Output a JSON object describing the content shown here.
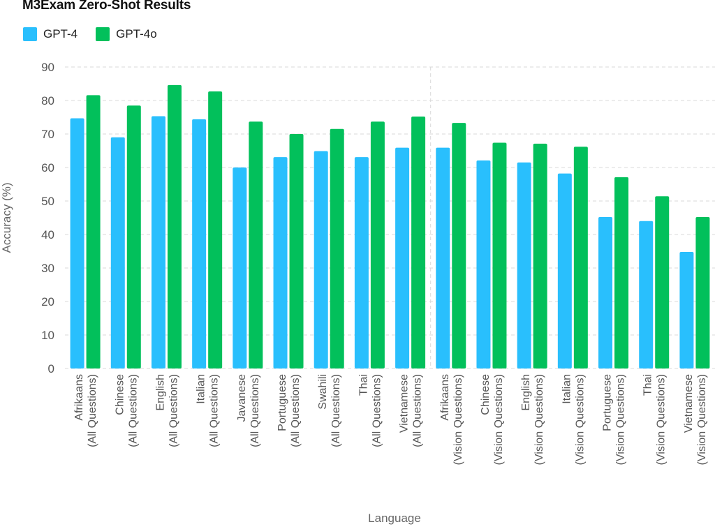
{
  "chart_data": {
    "type": "bar",
    "title": "M3Exam Zero-Shot Results",
    "xlabel": "Language",
    "ylabel": "Accuracy (%)",
    "ylim": [
      0,
      90
    ],
    "yticks": [
      0,
      10,
      20,
      30,
      40,
      50,
      60,
      70,
      80,
      90
    ],
    "grid": true,
    "legend_position": "top-left",
    "categories": [
      [
        "Afrikaans",
        "(All Questions)"
      ],
      [
        "Chinese",
        "(All Questions)"
      ],
      [
        "English",
        "(All Questions)"
      ],
      [
        "Italian",
        "(All Questions)"
      ],
      [
        "Javanese",
        "(All Questions)"
      ],
      [
        "Portuguese",
        "(All Questions)"
      ],
      [
        "Swahili",
        "(All Questions)"
      ],
      [
        "Thai",
        "(All Questions)"
      ],
      [
        "Vietnamese",
        "(All Questions)"
      ],
      [
        "Afrikaans",
        "(Vision Questions)"
      ],
      [
        "Chinese",
        "(Vision Questions)"
      ],
      [
        "English",
        "(Vision Questions)"
      ],
      [
        "Italian",
        "(Vision Questions)"
      ],
      [
        "Portuguese",
        "(Vision Questions)"
      ],
      [
        "Thai",
        "(Vision Questions)"
      ],
      [
        "Vietnamese",
        "(Vision Questions)"
      ]
    ],
    "series": [
      {
        "name": "GPT-4",
        "color": "#29bffd",
        "values": [
          74.7,
          69,
          75.3,
          74.4,
          60,
          63.1,
          64.9,
          63.1,
          65.9,
          65.9,
          62.1,
          61.5,
          58.2,
          45.2,
          44,
          34.8
        ]
      },
      {
        "name": "GPT-4o",
        "color": "#02c05b",
        "values": [
          81.6,
          78.5,
          84.6,
          82.7,
          73.7,
          70.0,
          71.5,
          73.7,
          75.2,
          73.3,
          67.4,
          67.1,
          66.2,
          57.1,
          51.4,
          45.2
        ]
      }
    ]
  }
}
